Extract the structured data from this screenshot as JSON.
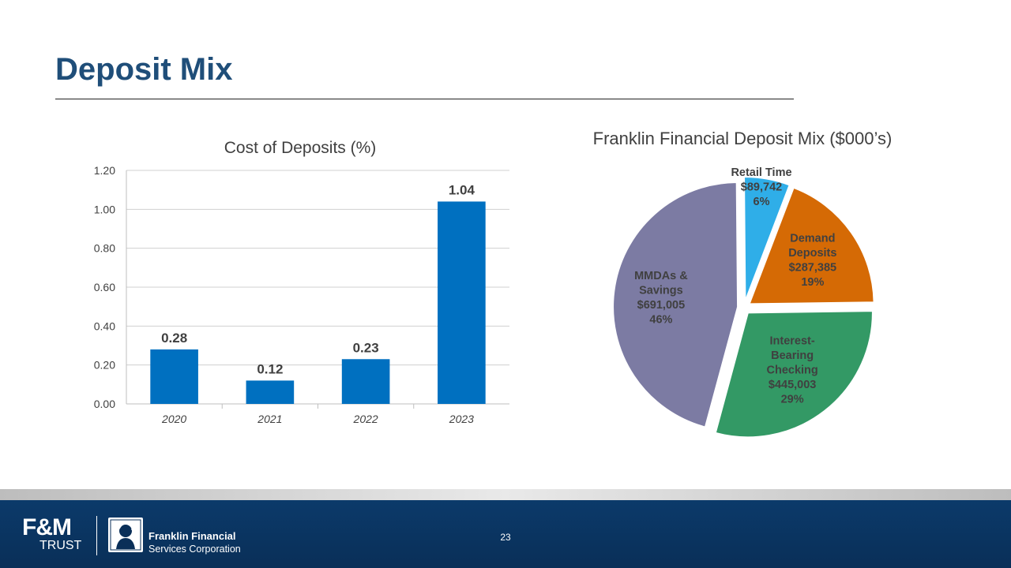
{
  "slide": {
    "title": "Deposit Mix",
    "page_number": "23"
  },
  "footer": {
    "logo_fm": "F&M",
    "logo_trust": "TRUST",
    "company_name": "Franklin Financial",
    "company_sub": "Services Corporation"
  },
  "colors": {
    "title": "#1F4E79",
    "bar": "#0070C0",
    "footer_bg": "#0A2F58"
  },
  "chart_data": [
    {
      "type": "bar",
      "title": "Cost of Deposits (%)",
      "categories": [
        "2020",
        "2021",
        "2022",
        "2023"
      ],
      "values": [
        0.28,
        0.12,
        0.23,
        1.04
      ],
      "data_labels": [
        "0.28",
        "0.12",
        "0.23",
        "1.04"
      ],
      "ylim": [
        0,
        1.2
      ],
      "yticks": [
        0,
        0.2,
        0.4,
        0.6,
        0.8,
        1.0,
        1.2
      ],
      "ytick_labels": [
        "0.00",
        "0.20",
        "0.40",
        "0.60",
        "0.80",
        "1.00",
        "1.20"
      ],
      "grid": true,
      "bar_color": "#0070C0"
    },
    {
      "type": "pie",
      "title": "Franklin Financial Deposit Mix ($000’s)",
      "slices": [
        {
          "label_lines": [
            "Retail Time",
            "$89,742",
            "6%"
          ],
          "value": 89742,
          "percent": 6,
          "color": "#2FAEE8",
          "exploded": true
        },
        {
          "label_lines": [
            "Demand",
            "Deposits",
            "$287,385",
            "19%"
          ],
          "value": 287385,
          "percent": 19,
          "color": "#D56A05",
          "exploded": true
        },
        {
          "label_lines": [
            "Interest-",
            "Bearing",
            "Checking",
            "$445,003",
            "29%"
          ],
          "value": 445003,
          "percent": 29,
          "color": "#339965",
          "exploded": true
        },
        {
          "label_lines": [
            "MMDAs &",
            "Savings",
            "$691,005",
            "46%"
          ],
          "value": 691005,
          "percent": 46,
          "color": "#7C7BA3",
          "exploded": true
        }
      ]
    }
  ]
}
